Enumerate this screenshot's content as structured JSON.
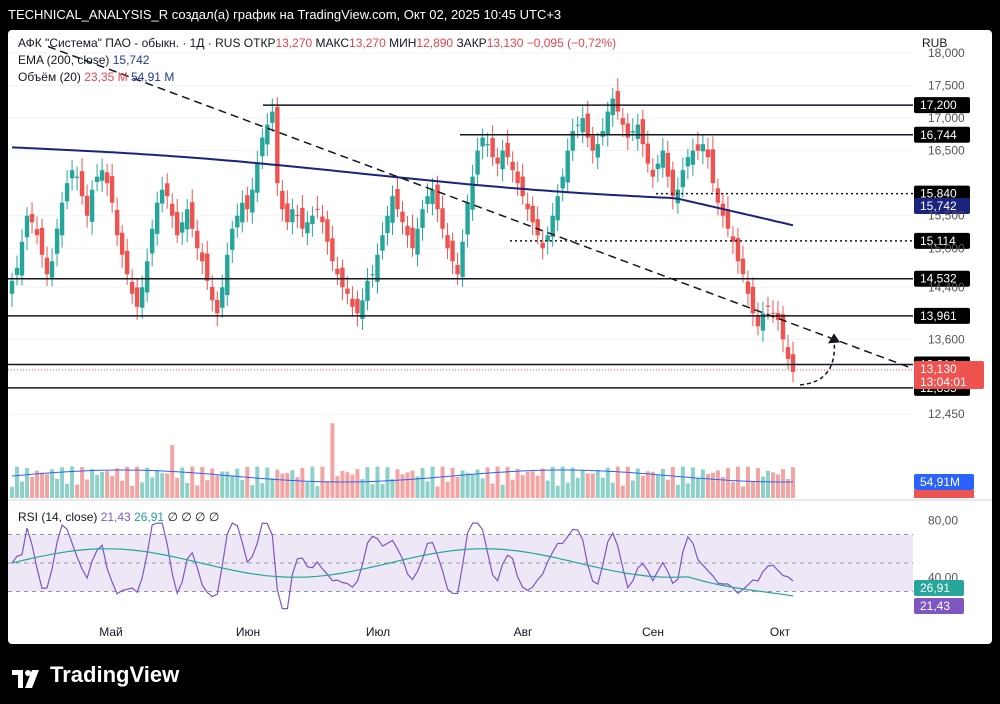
{
  "header": {
    "text": "TECHNICAL_ANALYSIS_R создал(а) график на TradingView.com, Окт 02, 2025 10:45 UTC+3"
  },
  "legend": {
    "symbol": "АФК \"Система\" ПАО - обыкн. · 1Д · RUS",
    "open_label": "ОТКР",
    "open": "13,270",
    "high_label": "МАКС",
    "high": "13,270",
    "low_label": "МИН",
    "low": "12,890",
    "close_label": "ЗАКР",
    "close": "13,130",
    "change": "−0,095 (−0,72%)",
    "ema_label": "EMA (200, close)",
    "ema_value": "15,742",
    "volume_label": "Объём (20)",
    "volume_value": "23,35 M",
    "volume_ma": "54,91 M",
    "rsi_label": "RSI (14, close)",
    "rsi_value": "21,43",
    "rsi_ma": "26,91",
    "rsi_extra": "∅ ∅ ∅ ∅"
  },
  "currency": "RUB",
  "footer": {
    "brand": "TradingView"
  },
  "colors": {
    "up": "#26a69a",
    "down": "#ef5350",
    "ema": "#1a237e",
    "rsi": "#7e57c2",
    "rsi_ma": "#26a69a"
  },
  "chart_data": {
    "type": "candlestick",
    "xlabel_ticks": [
      "Май",
      "Июн",
      "Июл",
      "Авг",
      "Сен",
      "Окт"
    ],
    "price_ticks": [
      "18,000",
      "17,500",
      "17,000",
      "16,500",
      "15,500",
      "15,000",
      "14,400",
      "13,600",
      "12,450"
    ],
    "price_range": [
      11.9,
      18.2
    ],
    "levels": [
      {
        "label": "17,200",
        "value": 17.2,
        "style": "solid"
      },
      {
        "label": "16,744",
        "value": 16.744,
        "style": "solid"
      },
      {
        "label": "15,840",
        "value": 15.84,
        "style": "dotted"
      },
      {
        "label": "15,114",
        "value": 15.114,
        "style": "dotted"
      },
      {
        "label": "14,532",
        "value": 14.532,
        "style": "solid"
      },
      {
        "label": "13,961",
        "value": 13.961,
        "style": "solid"
      },
      {
        "label": "13,214",
        "value": 13.214,
        "style": "solid"
      },
      {
        "label": "12,855",
        "value": 12.855,
        "style": "solid"
      }
    ],
    "current_price": {
      "label": "13,130",
      "timer": "13:04:01",
      "value": 13.13
    },
    "ema_last": {
      "label": "15,742",
      "value": 15.742
    },
    "volume_labels": {
      "ma": "54,91M",
      "last": "23,35M"
    },
    "rsi_ticks": [
      "80,00",
      "40,00"
    ],
    "rsi_levels": {
      "upper": 70,
      "middle": 50,
      "lower": 30
    },
    "rsi_last": {
      "value": "21,43",
      "ma": "26,91"
    },
    "close_series": [
      14.5,
      14.7,
      15.1,
      15.5,
      15.4,
      15.2,
      14.9,
      14.6,
      14.8,
      15.3,
      15.7,
      16.0,
      16.2,
      16.1,
      15.8,
      15.5,
      15.9,
      16.1,
      16.2,
      16.0,
      15.7,
      15.2,
      14.9,
      14.6,
      14.3,
      14.1,
      14.4,
      14.8,
      15.3,
      15.7,
      15.9,
      15.8,
      15.5,
      15.2,
      15.4,
      15.6,
      15.3,
      15.0,
      14.8,
      14.5,
      14.2,
      14.0,
      14.4,
      14.9,
      15.3,
      15.5,
      15.7,
      15.6,
      15.9,
      16.3,
      16.7,
      16.9,
      17.1,
      16.0,
      15.6,
      15.4,
      15.6,
      15.5,
      15.3,
      15.4,
      15.5,
      15.6,
      15.4,
      15.1,
      14.8,
      14.6,
      14.4,
      14.3,
      14.1,
      14.0,
      14.2,
      14.5,
      14.6,
      14.9,
      15.2,
      15.5,
      15.8,
      15.6,
      15.4,
      15.2,
      15.0,
      15.3,
      15.6,
      15.8,
      15.9,
      15.6,
      15.3,
      15.0,
      14.8,
      14.6,
      15.1,
      15.7,
      16.1,
      16.5,
      16.7,
      16.6,
      16.4,
      16.3,
      16.5,
      16.4,
      16.2,
      16.0,
      15.8,
      15.6,
      15.4,
      15.2,
      15.0,
      15.2,
      15.5,
      15.8,
      16.1,
      16.5,
      16.8,
      16.9,
      17.0,
      16.7,
      16.5,
      16.6,
      16.8,
      17.1,
      17.3,
      17.1,
      16.9,
      16.7,
      16.8,
      16.9,
      16.6,
      16.3,
      16.1,
      16.3,
      16.5,
      16.1,
      15.8,
      15.9,
      16.2,
      16.4,
      16.5,
      16.5,
      16.6,
      16.4,
      16.0,
      15.7,
      15.5,
      15.3,
      15.1,
      14.8,
      14.6,
      14.3,
      14.0,
      13.8,
      14.0,
      14.1,
      14.0,
      13.9,
      13.6,
      13.3,
      13.1
    ]
  }
}
